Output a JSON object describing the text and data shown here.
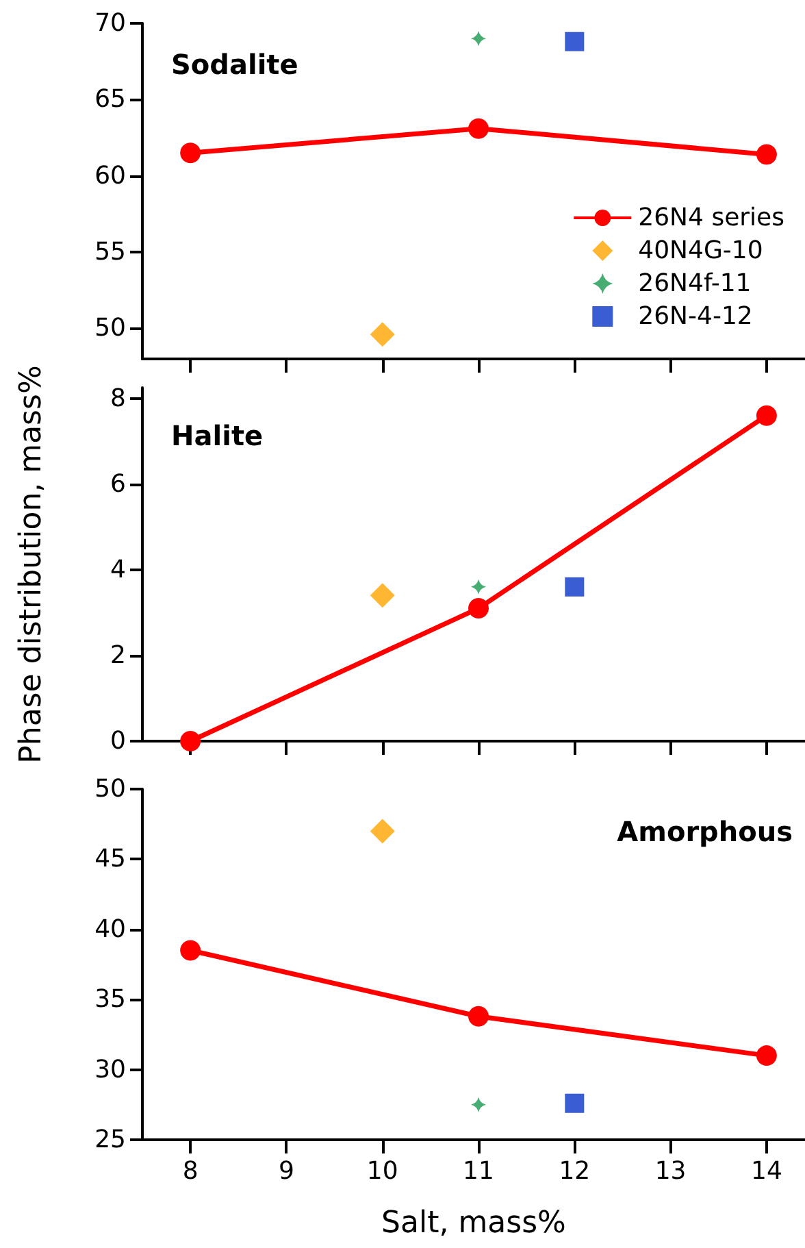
{
  "chart_data": [
    {
      "type": "line",
      "title": "Sodalite",
      "xlim": [
        7.5,
        14.4
      ],
      "xticks": [
        8,
        9,
        10,
        11,
        12,
        13,
        14
      ],
      "ylim": [
        48,
        70
      ],
      "yticks": [
        50,
        55,
        60,
        65,
        70
      ],
      "tick_labels": "y",
      "legend": "right",
      "series": [
        {
          "name": "26N4 series",
          "type": "line",
          "marker": "circle",
          "line_style": "solid",
          "color": "#ff0000",
          "x": [
            8,
            11,
            14
          ],
          "values": [
            61.5,
            63.1,
            61.4
          ]
        },
        {
          "name": "40N4G-10",
          "type": "scatter",
          "marker": "diamond",
          "color": "#ffa500",
          "x": [
            10
          ],
          "values": [
            49.6
          ]
        },
        {
          "name": "26N4f-11",
          "type": "scatter",
          "marker": "star",
          "color": "#1a9850",
          "x": [
            11
          ],
          "values": [
            69.0
          ]
        },
        {
          "name": "26N-4-12",
          "type": "scatter",
          "marker": "square",
          "color": "#0a35c8",
          "x": [
            12
          ],
          "values": [
            68.8
          ]
        }
      ]
    },
    {
      "type": "line",
      "title": "Halite",
      "ylabel": "Phase distribution, mass%",
      "xlim": [
        7.5,
        14.4
      ],
      "xticks": [
        8,
        9,
        10,
        11,
        12,
        13,
        14
      ],
      "ylim": [
        0,
        8.25
      ],
      "yticks": [
        0,
        2,
        4,
        6,
        8
      ],
      "tick_labels": "y",
      "series": [
        {
          "type": "line",
          "marker": "circle",
          "line_style": "solid",
          "color": "#ff0000",
          "x": [
            8,
            11,
            14
          ],
          "values": [
            0,
            3.1,
            7.6
          ]
        },
        {
          "type": "scatter",
          "marker": "diamond",
          "color": "#ffa500",
          "x": [
            10
          ],
          "values": [
            3.4
          ]
        },
        {
          "type": "scatter",
          "marker": "star",
          "color": "#1a9850",
          "x": [
            11
          ],
          "values": [
            3.6
          ]
        },
        {
          "type": "scatter",
          "marker": "square",
          "color": "#0a35c8",
          "x": [
            12
          ],
          "values": [
            3.6
          ]
        }
      ]
    },
    {
      "type": "line",
      "title": "Amorphous",
      "xlabel": "Salt, mass%",
      "xlim": [
        7.5,
        14.4
      ],
      "xticks": [
        8,
        9,
        10,
        11,
        12,
        13,
        14
      ],
      "ylim": [
        25,
        50
      ],
      "yticks": [
        25,
        30,
        35,
        40,
        45,
        50
      ],
      "series": [
        {
          "type": "line",
          "marker": "circle",
          "line_style": "solid",
          "color": "#ff0000",
          "x": [
            8,
            11,
            14
          ],
          "values": [
            38.5,
            33.8,
            31.0
          ]
        },
        {
          "type": "scatter",
          "marker": "diamond",
          "color": "#ffa500",
          "x": [
            10
          ],
          "values": [
            47.0
          ]
        },
        {
          "type": "scatter",
          "marker": "star",
          "color": "#1a9850",
          "x": [
            11
          ],
          "values": [
            27.5
          ]
        },
        {
          "type": "scatter",
          "marker": "square",
          "color": "#0a35c8",
          "x": [
            12
          ],
          "values": [
            27.6
          ]
        }
      ]
    }
  ]
}
